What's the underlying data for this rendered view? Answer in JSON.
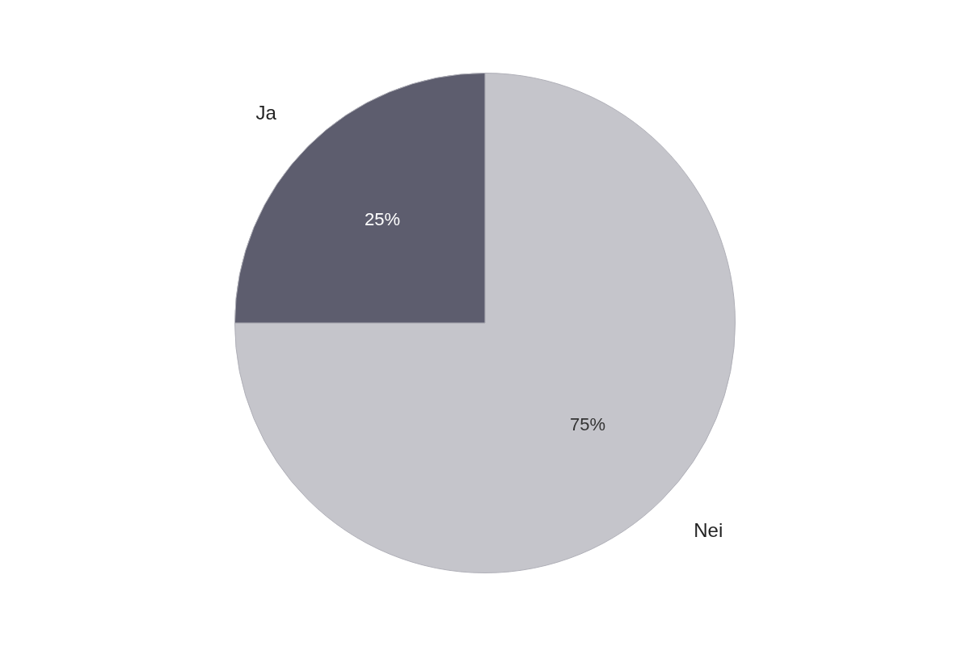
{
  "chart_data": {
    "type": "pie",
    "categories": [
      "Nei",
      "Ja"
    ],
    "values": [
      75,
      25
    ],
    "value_labels": [
      "75%",
      "25%"
    ],
    "colors": [
      "#c5c5cb",
      "#5d5d6e"
    ],
    "data_labels": true
  }
}
